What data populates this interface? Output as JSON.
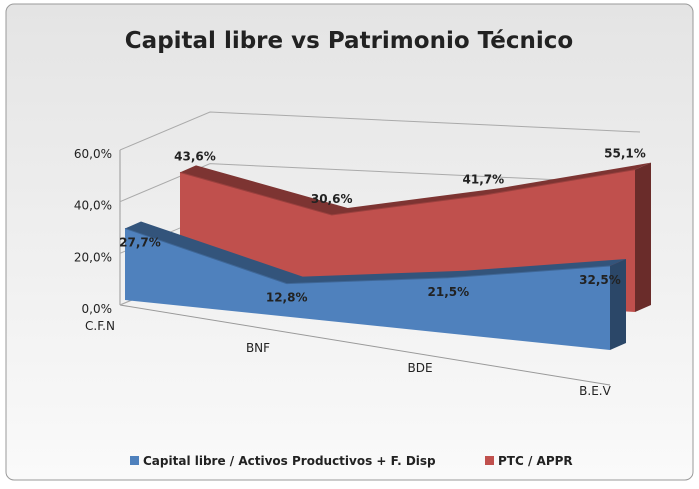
{
  "chart_data": {
    "type": "line3d",
    "title": "Capital libre vs Patrimonio Técnico",
    "categories": [
      "C.F.N",
      "BNF",
      "BDE",
      "B.E.V"
    ],
    "series": [
      {
        "name": "Capital libre / Activos Productivos + F. Disp",
        "color": "#4f81bd",
        "values": [
          27.7,
          12.8,
          21.5,
          32.5
        ],
        "value_labels": [
          "27,7%",
          "12,8%",
          "21,5%",
          "32,5%"
        ]
      },
      {
        "name": "PTC / APPR",
        "color": "#c0504d",
        "values": [
          43.6,
          30.6,
          41.7,
          55.1
        ],
        "value_labels": [
          "43,6%",
          "30,6%",
          "41,7%",
          "55,1%"
        ]
      }
    ],
    "ylim": [
      0,
      60
    ],
    "yticks": [
      {
        "value": 0,
        "label": "0,0%"
      },
      {
        "value": 20,
        "label": "20,0%"
      },
      {
        "value": 40,
        "label": "40,0%"
      },
      {
        "value": 60,
        "label": "60,0%"
      }
    ],
    "grid": true,
    "legend": "bottom"
  }
}
